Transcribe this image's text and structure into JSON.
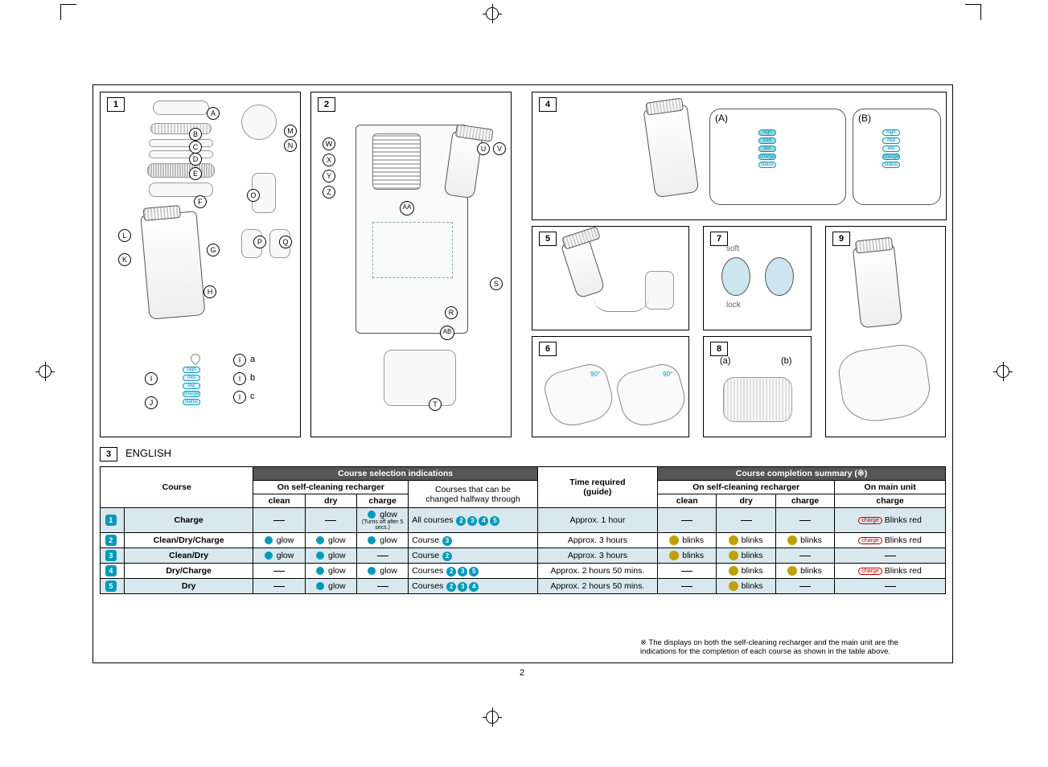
{
  "page_number": "2",
  "section_label": "ENGLISH",
  "panels": {
    "p1": {
      "num": "1",
      "labels_left": [
        "A",
        "B",
        "C",
        "D",
        "E",
        "F",
        "L",
        "G",
        "K",
        "H"
      ],
      "labels_right": [
        "M",
        "N",
        "O",
        "P",
        "Q"
      ],
      "indicator_labels": [
        "I",
        "J"
      ],
      "sub_labels": [
        "a",
        "b",
        "c"
      ],
      "pills": [
        "high",
        "mid",
        "low",
        "charge",
        "status"
      ]
    },
    "p2": {
      "num": "2",
      "labels_left": [
        "W",
        "X",
        "Y",
        "Z"
      ],
      "labels_right": [
        "U",
        "V",
        "S",
        "R",
        "T"
      ],
      "labels_mid": [
        "AA",
        "AB"
      ]
    },
    "p3": {
      "num": "3"
    },
    "p4": {
      "num": "4",
      "labels": [
        "(A)",
        "(B)"
      ],
      "pills": [
        "high",
        "mid",
        "low",
        "charge",
        "status"
      ]
    },
    "p5": {
      "num": "5"
    },
    "p6": {
      "num": "6",
      "angle": "90°"
    },
    "p7": {
      "num": "7",
      "labels": [
        "soft",
        "lock"
      ]
    },
    "p8": {
      "num": "8",
      "labels": [
        "(a)",
        "(b)"
      ]
    },
    "p9": {
      "num": "9"
    }
  },
  "table": {
    "header_groups": {
      "course": "Course",
      "selection": "Course selection indications",
      "selection_sub_self": "On self-cleaning recharger",
      "selection_sub_halfway": "Courses that can be\nchanged halfway through",
      "time": "Time required\n(guide)",
      "completion": "Course completion summary (※)",
      "completion_self": "On self-cleaning recharger",
      "completion_main": "On main unit"
    },
    "cols_selection": [
      "clean",
      "dry",
      "charge"
    ],
    "cols_completion": [
      "clean",
      "dry",
      "charge",
      "charge"
    ],
    "rows": [
      {
        "n": "1",
        "name": "Charge",
        "sel": [
          "—",
          "—",
          "glow"
        ],
        "sel_note": "(Turns off after 5 secs.)",
        "halfway": "All courses",
        "halfway_nums": [
          "2",
          "3",
          "4",
          "5"
        ],
        "time": "Approx. 1 hour",
        "comp": [
          "—",
          "—",
          "—",
          "Blinks red"
        ],
        "shade": true
      },
      {
        "n": "2",
        "name": "Clean/Dry/Charge",
        "sel": [
          "glow",
          "glow",
          "glow"
        ],
        "halfway": "Course",
        "halfway_nums": [
          "3"
        ],
        "time": "Approx. 3 hours",
        "comp": [
          "blinks",
          "blinks",
          "blinks",
          "Blinks red"
        ],
        "shade": false
      },
      {
        "n": "3",
        "name": "Clean/Dry",
        "sel": [
          "glow",
          "glow",
          "—"
        ],
        "halfway": "Course",
        "halfway_nums": [
          "2"
        ],
        "time": "Approx. 3 hours",
        "comp": [
          "blinks",
          "blinks",
          "—",
          "—"
        ],
        "shade": true
      },
      {
        "n": "4",
        "name": "Dry/Charge",
        "sel": [
          "—",
          "glow",
          "glow"
        ],
        "halfway": "Courses",
        "halfway_nums": [
          "2",
          "3",
          "5"
        ],
        "time": "Approx. 2 hours 50 mins.",
        "comp": [
          "—",
          "blinks",
          "blinks",
          "Blinks red"
        ],
        "shade": false
      },
      {
        "n": "5",
        "name": "Dry",
        "sel": [
          "—",
          "glow",
          "—"
        ],
        "halfway": "Courses",
        "halfway_nums": [
          "2",
          "3",
          "4"
        ],
        "time": "Approx. 2 hours 50 mins.",
        "comp": [
          "—",
          "blinks",
          "—",
          "—"
        ],
        "shade": true
      }
    ]
  },
  "footnote": "※ The displays on both the self-cleaning recharger and the main unit are the\nindications for the completion of each course as shown in the table above.",
  "colors": {
    "accent": "#0099bb",
    "shade": "#d8e8ee",
    "header": "#555555"
  }
}
